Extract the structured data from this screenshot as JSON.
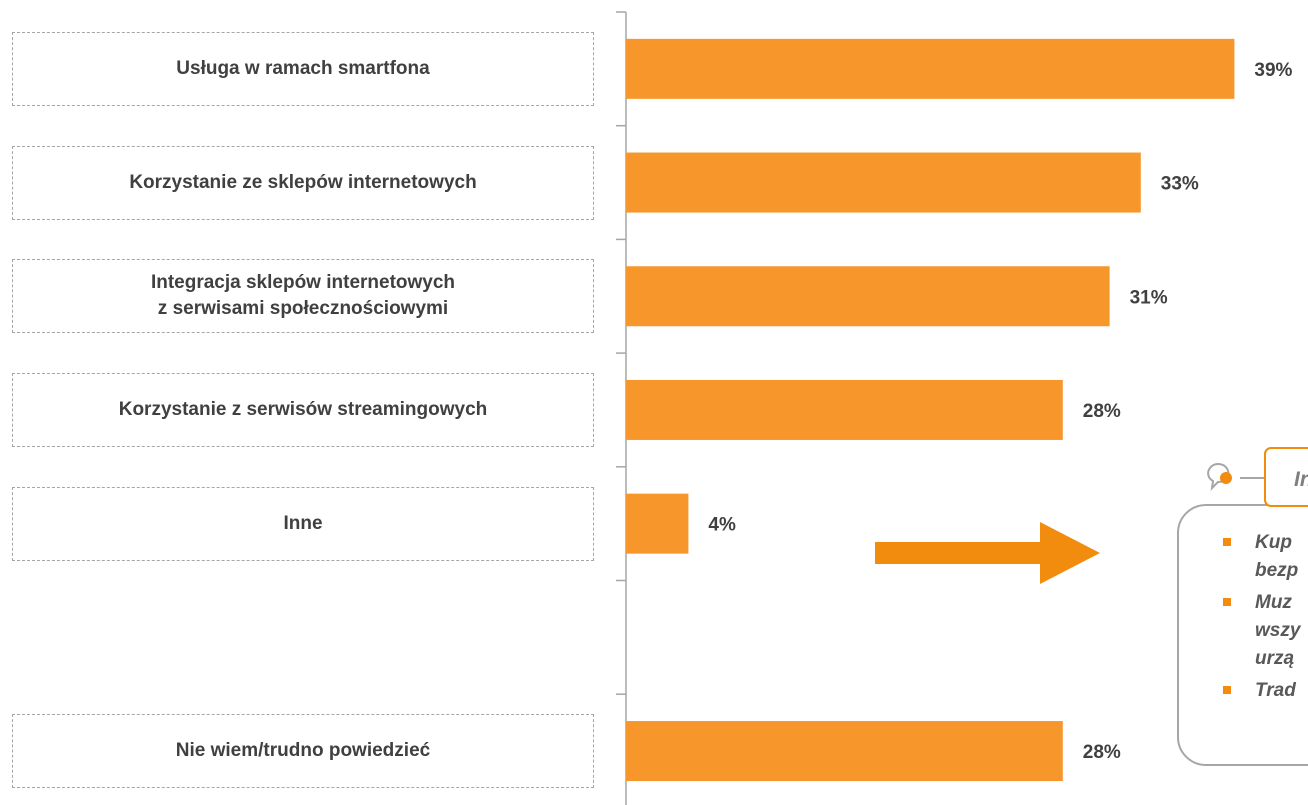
{
  "chart_data": {
    "type": "bar",
    "orientation": "horizontal",
    "color": "#f7962b",
    "categories": [
      "Usługa w ramach smartfona",
      "Korzystanie ze sklepów internetowych",
      "Integracja sklepów internetowych\nz serwisami społecznościowymi",
      "Korzystanie z serwisów streamingowych",
      "Inne",
      null,
      "Nie wiem/trudno powiedzieć"
    ],
    "values": [
      39,
      33,
      31,
      28,
      4,
      null,
      28
    ],
    "value_labels": [
      "39%",
      "33%",
      "31%",
      "28%",
      "4%",
      null,
      "28%"
    ]
  },
  "callout": {
    "title": "In",
    "items": [
      [
        "Kup",
        "bezp"
      ],
      [
        "Muz",
        "wszy",
        "urzą"
      ],
      [
        "Trad"
      ]
    ]
  }
}
